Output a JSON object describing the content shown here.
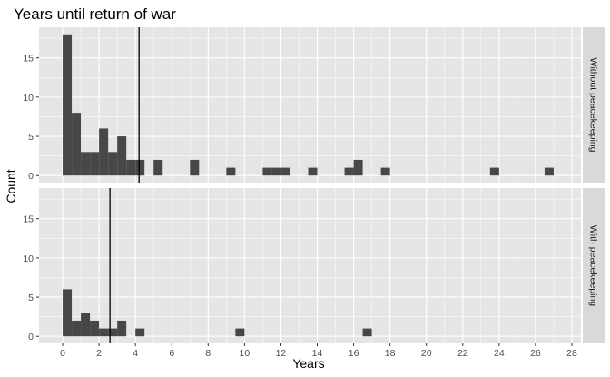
{
  "chart_data": {
    "type": "histogram",
    "title": "Years until return of war",
    "xlabel": "Years",
    "ylabel": "Count",
    "xlim": [
      -1.3,
      28.5
    ],
    "ylim": [
      -0.9,
      18.9
    ],
    "x_ticks": [
      0,
      2,
      4,
      6,
      8,
      10,
      12,
      14,
      16,
      18,
      20,
      22,
      24,
      26,
      28
    ],
    "y_ticks": [
      0,
      5,
      10,
      15
    ],
    "bin_width": 0.5,
    "grid": true,
    "facet_strip_position": "right",
    "colors": {
      "panel_background": "#e5e5e5",
      "grid": "#ffffff",
      "bar": "#474747",
      "strip_background": "#d9d9d9",
      "vline": "#000000"
    },
    "panels": [
      {
        "name": "Without peacekeeping",
        "vline": 4.2,
        "bins": [
          {
            "x": 0.0,
            "count": 18
          },
          {
            "x": 0.5,
            "count": 8
          },
          {
            "x": 1.0,
            "count": 3
          },
          {
            "x": 1.5,
            "count": 3
          },
          {
            "x": 2.0,
            "count": 6
          },
          {
            "x": 2.5,
            "count": 3
          },
          {
            "x": 3.0,
            "count": 5
          },
          {
            "x": 3.5,
            "count": 2
          },
          {
            "x": 4.0,
            "count": 2
          },
          {
            "x": 5.0,
            "count": 2
          },
          {
            "x": 7.0,
            "count": 2
          },
          {
            "x": 9.0,
            "count": 1
          },
          {
            "x": 11.0,
            "count": 1
          },
          {
            "x": 11.5,
            "count": 1
          },
          {
            "x": 12.0,
            "count": 1
          },
          {
            "x": 13.5,
            "count": 1
          },
          {
            "x": 15.5,
            "count": 1
          },
          {
            "x": 16.0,
            "count": 2
          },
          {
            "x": 17.5,
            "count": 1
          },
          {
            "x": 23.5,
            "count": 1
          },
          {
            "x": 26.5,
            "count": 1
          }
        ]
      },
      {
        "name": "With peacekeeping",
        "vline": 2.6,
        "bins": [
          {
            "x": 0.0,
            "count": 6
          },
          {
            "x": 0.5,
            "count": 2
          },
          {
            "x": 1.0,
            "count": 3
          },
          {
            "x": 1.5,
            "count": 2
          },
          {
            "x": 2.0,
            "count": 1
          },
          {
            "x": 2.5,
            "count": 1
          },
          {
            "x": 3.0,
            "count": 2
          },
          {
            "x": 4.0,
            "count": 1
          },
          {
            "x": 9.5,
            "count": 1
          },
          {
            "x": 16.5,
            "count": 1
          }
        ]
      }
    ]
  }
}
